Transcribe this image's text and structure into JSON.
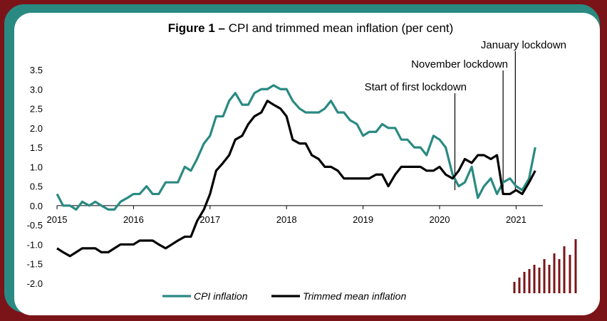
{
  "chart_data": {
    "type": "line",
    "title_bold": "Figure 1 –",
    "title_rest": " CPI and trimmed mean inflation (per cent)",
    "xlabel": "",
    "ylabel": "",
    "xlim": [
      2015.0,
      2021.35
    ],
    "ylim": [
      -2.0,
      3.5
    ],
    "yticks": [
      "3.5",
      "3.0",
      "2.5",
      "2.0",
      "1.5",
      "1.0",
      "0.5",
      "0.0",
      "-0.5",
      "-1.0",
      "-1.5",
      "-2.0"
    ],
    "ytick_values": [
      3.5,
      3.0,
      2.5,
      2.0,
      1.5,
      1.0,
      0.5,
      0.0,
      -0.5,
      -1.0,
      -1.5,
      -2.0
    ],
    "xticks": [
      "2015",
      "2016",
      "2017",
      "2018",
      "2019",
      "2020",
      "2021"
    ],
    "xtick_values": [
      2015,
      2016,
      2017,
      2018,
      2019,
      2020,
      2021
    ],
    "legend": {
      "placement": "bottom"
    },
    "colors": {
      "cpi": "#2a8a82",
      "trimmed": "#000000",
      "vline": "#000000",
      "logo": "#7a1418"
    },
    "annotations": [
      {
        "x": 2020.2,
        "label": "Start of first lockdown"
      },
      {
        "x": 2020.83,
        "label": "November lockdown"
      },
      {
        "x": 2020.99,
        "label": "January lockdown"
      }
    ],
    "series": [
      {
        "name": "CPI inflation",
        "x": [
          2015.0,
          2015.08,
          2015.17,
          2015.25,
          2015.33,
          2015.42,
          2015.5,
          2015.58,
          2015.67,
          2015.75,
          2015.83,
          2015.92,
          2016.0,
          2016.08,
          2016.17,
          2016.25,
          2016.33,
          2016.42,
          2016.5,
          2016.58,
          2016.67,
          2016.75,
          2016.83,
          2016.92,
          2017.0,
          2017.08,
          2017.17,
          2017.25,
          2017.33,
          2017.42,
          2017.5,
          2017.58,
          2017.67,
          2017.75,
          2017.83,
          2017.92,
          2018.0,
          2018.08,
          2018.17,
          2018.25,
          2018.33,
          2018.42,
          2018.5,
          2018.58,
          2018.67,
          2018.75,
          2018.83,
          2018.92,
          2019.0,
          2019.08,
          2019.17,
          2019.25,
          2019.33,
          2019.42,
          2019.5,
          2019.58,
          2019.67,
          2019.75,
          2019.83,
          2019.92,
          2020.0,
          2020.08,
          2020.17,
          2020.25,
          2020.33,
          2020.42,
          2020.5,
          2020.58,
          2020.67,
          2020.75,
          2020.83,
          2020.92,
          2021.0,
          2021.08,
          2021.17,
          2021.25
        ],
        "values": [
          0.3,
          0.0,
          0.0,
          -0.1,
          0.1,
          0.0,
          0.1,
          0.0,
          -0.1,
          -0.1,
          0.1,
          0.2,
          0.3,
          0.3,
          0.5,
          0.3,
          0.3,
          0.6,
          0.6,
          0.6,
          1.0,
          0.9,
          1.2,
          1.6,
          1.8,
          2.3,
          2.3,
          2.7,
          2.9,
          2.6,
          2.6,
          2.9,
          3.0,
          3.0,
          3.1,
          3.0,
          3.0,
          2.7,
          2.5,
          2.4,
          2.4,
          2.4,
          2.5,
          2.7,
          2.4,
          2.4,
          2.2,
          2.1,
          1.8,
          1.9,
          1.9,
          2.1,
          2.0,
          2.0,
          1.7,
          1.7,
          1.5,
          1.5,
          1.3,
          1.8,
          1.7,
          1.5,
          0.8,
          0.5,
          0.6,
          1.0,
          0.2,
          0.5,
          0.7,
          0.3,
          0.6,
          0.7,
          0.5,
          0.4,
          0.7,
          1.5
        ]
      },
      {
        "name": "Trimmed mean inflation",
        "x": [
          2015.0,
          2015.08,
          2015.17,
          2015.25,
          2015.33,
          2015.42,
          2015.5,
          2015.58,
          2015.67,
          2015.75,
          2015.83,
          2015.92,
          2016.0,
          2016.08,
          2016.17,
          2016.25,
          2016.33,
          2016.42,
          2016.5,
          2016.58,
          2016.67,
          2016.75,
          2016.83,
          2016.92,
          2017.0,
          2017.08,
          2017.17,
          2017.25,
          2017.33,
          2017.42,
          2017.5,
          2017.58,
          2017.67,
          2017.75,
          2017.83,
          2017.92,
          2018.0,
          2018.08,
          2018.17,
          2018.25,
          2018.33,
          2018.42,
          2018.5,
          2018.58,
          2018.67,
          2018.75,
          2018.83,
          2018.92,
          2019.0,
          2019.08,
          2019.17,
          2019.25,
          2019.33,
          2019.42,
          2019.5,
          2019.58,
          2019.67,
          2019.75,
          2019.83,
          2019.92,
          2020.0,
          2020.08,
          2020.17,
          2020.25,
          2020.33,
          2020.42,
          2020.5,
          2020.58,
          2020.67,
          2020.75,
          2020.83,
          2020.92,
          2021.0,
          2021.08,
          2021.17,
          2021.25
        ],
        "values": [
          -1.1,
          -1.2,
          -1.3,
          -1.2,
          -1.1,
          -1.1,
          -1.1,
          -1.2,
          -1.2,
          -1.1,
          -1.0,
          -1.0,
          -1.0,
          -0.9,
          -0.9,
          -0.9,
          -1.0,
          -1.1,
          -1.0,
          -0.9,
          -0.8,
          -0.8,
          -0.4,
          -0.1,
          0.3,
          0.9,
          1.1,
          1.3,
          1.7,
          1.8,
          2.1,
          2.3,
          2.4,
          2.7,
          2.6,
          2.5,
          2.3,
          1.7,
          1.6,
          1.6,
          1.3,
          1.2,
          1.0,
          1.0,
          0.9,
          0.7,
          0.7,
          0.7,
          0.7,
          0.7,
          0.8,
          0.8,
          0.5,
          0.8,
          1.0,
          1.0,
          1.0,
          1.0,
          0.9,
          0.9,
          1.0,
          0.8,
          0.7,
          0.9,
          1.2,
          1.1,
          1.3,
          1.3,
          1.2,
          1.3,
          0.3,
          0.3,
          0.4,
          0.3,
          0.6,
          0.9
        ]
      }
    ]
  }
}
